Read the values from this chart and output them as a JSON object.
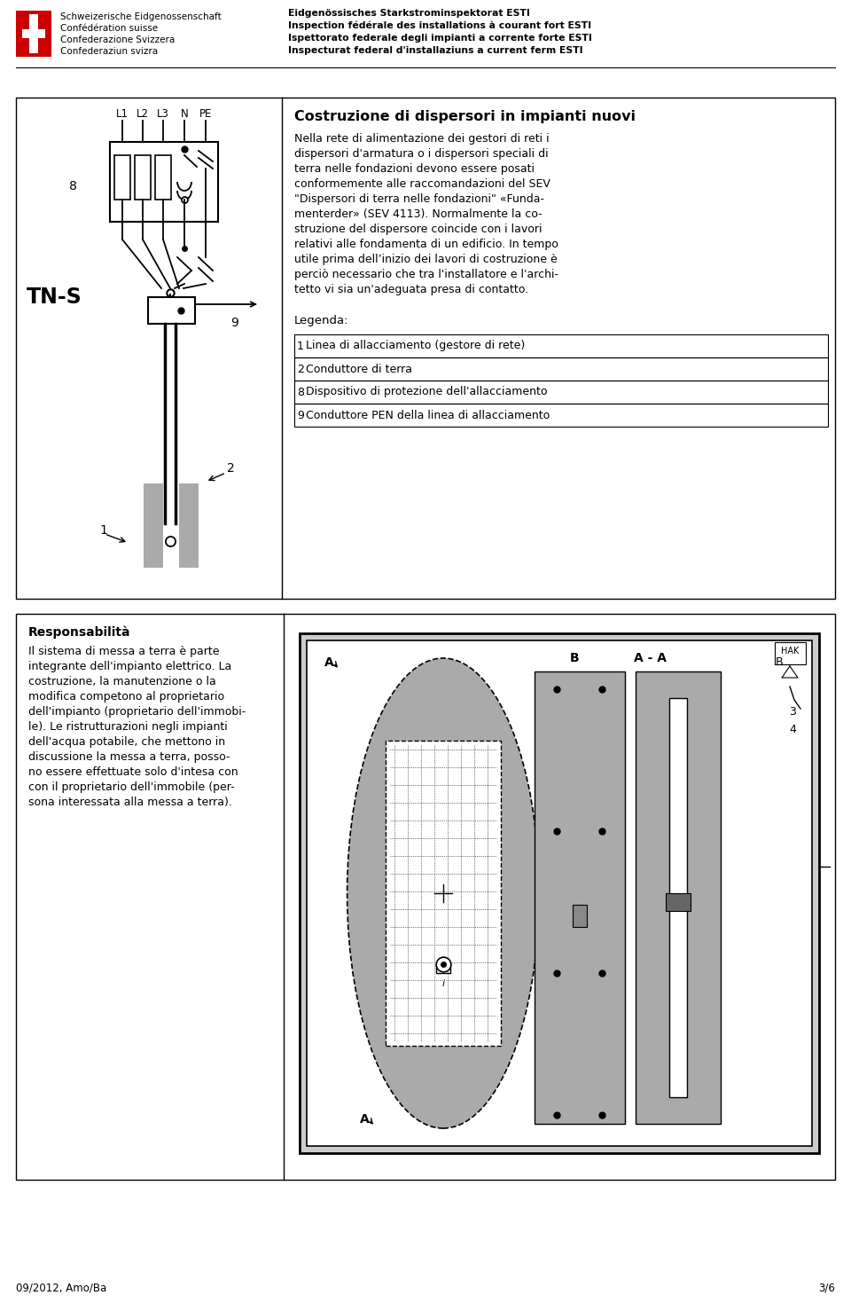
{
  "page_width": 9.6,
  "page_height": 14.78,
  "bg_color": "#ffffff",
  "header": {
    "org_lines": [
      "Schweizerische Eidgenossenschaft",
      "Confédération suisse",
      "Confederazione Svizzera",
      "Confederaziun svizra"
    ],
    "right_lines": [
      "Eidgenössisches Starkstrominspektorat ESTI",
      "Inspection fédérale des installations à courant fort ESTI",
      "Ispettorato federale degli impianti a corrente forte ESTI",
      "Inspecturat federal d'installaziuns a current ferm ESTI"
    ]
  },
  "top_box": {
    "title": "Costruzione di dispersori in impianti nuovi",
    "body_lines": [
      "Nella rete di alimentazione dei gestori di reti i",
      "dispersori d'armatura o i dispersori speciali di",
      "terra nelle fondazioni devono essere posati",
      "conformemente alle raccomandazioni del SEV",
      "\"Dispersori di terra nelle fondazioni\" «Funda-",
      "menterder» (SEV 4113). Normalmente la co-",
      "struzione del dispersore coincide con i lavori",
      "relativi alle fondamenta di un edificio. In tempo",
      "utile prima dell’inizio dei lavori di costruzione è",
      "perciò necessario che tra l'installatore e l'archi-",
      "tetto vi sia un'adeguata presa di contatto."
    ],
    "legend_title": "Legenda:",
    "legend_items": [
      [
        "1",
        "Linea di allacciamento (gestore di rete)"
      ],
      [
        "2",
        "Conduttore di terra"
      ],
      [
        "8",
        "Dispositivo di protezione dell'allacciamento"
      ],
      [
        "9",
        "Conduttore PEN della linea di allacciamento"
      ]
    ],
    "diagram_label": "TN-S",
    "diagram_labels_top": [
      "L1",
      "L2",
      "L3",
      "N",
      "PE"
    ],
    "diagram_num8": "8",
    "diagram_num9": "9",
    "diagram_num1": "1",
    "diagram_num2": "2"
  },
  "bottom_box": {
    "title": "Responsabilità",
    "body_lines": [
      "Il sistema di messa a terra è parte",
      "integrante dell'impianto elettrico. La",
      "costruzione, la manutenzione o la",
      "modifica competono al proprietario",
      "dell'impianto (proprietario dell'immobi-",
      "le). Le ristrutturazioni negli impianti",
      "dell'acqua potabile, che mettono in",
      "discussione la messa a terra, posso-",
      "no essere effettuate solo d'intesa con",
      "con il proprietario dell'immobile (per-",
      "sona interessata alla messa a terra)."
    ]
  },
  "footer": {
    "left": "09/2012, Amo/Ba",
    "right": "3/6"
  }
}
